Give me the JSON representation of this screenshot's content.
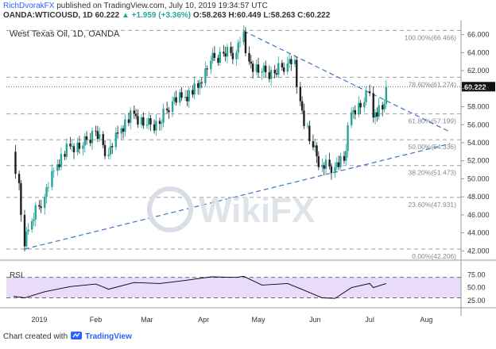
{
  "header": {
    "author": "RichDvorakFX",
    "published": "published on TradingView.com, July 10, 2019 19:34:57 UTC",
    "symbol": "OANDA:WTICOUSD, 1D",
    "price": "60.222",
    "change": "+1.959 (+3.36%)",
    "ohlc_o": "O:58.263",
    "ohlc_h": "H:60.449",
    "ohlc_l": "L:58.263",
    "ohlc_c": "C:60.222"
  },
  "footer": {
    "label": "Chart created with",
    "brand": "TradingView"
  },
  "watermark": "WikiFX",
  "chart_data": {
    "type": "candlestick",
    "title": "West Texas Oil, 1D, OANDA",
    "y_axis": {
      "ylim": [
        41.5,
        67.2
      ],
      "ticks": [
        "66.000",
        "64.000",
        "62.000",
        "60.000",
        "58.000",
        "56.000",
        "54.000",
        "52.000",
        "50.000",
        "48.000",
        "46.000",
        "44.000",
        "42.000"
      ],
      "position": "right"
    },
    "x_axis": {
      "labels": [
        "2019",
        "Feb",
        "Mar",
        "Apr",
        "May",
        "Jun",
        "Jul",
        "Aug"
      ],
      "label_dates": [
        "2019-01-01",
        "2019-02-01",
        "2019-03-01",
        "2019-04-01",
        "2019-05-01",
        "2019-06-01",
        "2019-07-01",
        "2019-08-01"
      ]
    },
    "last_price": "60.222",
    "fib_levels": [
      {
        "label": "100.00%(66.466)",
        "value": 66.466
      },
      {
        "label": "78.60%(61.274)",
        "value": 61.274
      },
      {
        "label": "61.80%(57.199)",
        "value": 57.199
      },
      {
        "label": "50.00%(54.336)",
        "value": 54.336
      },
      {
        "label": "38.20%(51.473)",
        "value": 51.473
      },
      {
        "label": "23.60%(47.931)",
        "value": 47.931
      },
      {
        "label": "0.00%(42.206)",
        "value": 42.206
      }
    ],
    "trendlines": [
      {
        "from": [
          "2018-12-24",
          42.2
        ],
        "to": [
          "2019-08-14",
          53.9
        ]
      },
      {
        "from": [
          "2019-04-23",
          66.4
        ],
        "to": [
          "2019-08-14",
          55.2
        ]
      }
    ],
    "series": [
      {
        "date": "2018-12-18",
        "value": 53.0
      },
      {
        "date": "2018-12-21",
        "value": 49.5
      },
      {
        "date": "2018-12-24",
        "value": 42.5
      },
      {
        "date": "2018-12-28",
        "value": 45.3
      },
      {
        "date": "2019-01-04",
        "value": 48.0
      },
      {
        "date": "2019-01-11",
        "value": 51.6
      },
      {
        "date": "2019-01-18",
        "value": 53.6
      },
      {
        "date": "2019-01-25",
        "value": 53.7
      },
      {
        "date": "2019-02-01",
        "value": 55.3
      },
      {
        "date": "2019-02-08",
        "value": 52.7
      },
      {
        "date": "2019-02-15",
        "value": 55.6
      },
      {
        "date": "2019-02-22",
        "value": 57.2
      },
      {
        "date": "2019-03-01",
        "value": 56.0
      },
      {
        "date": "2019-03-08",
        "value": 56.1
      },
      {
        "date": "2019-03-15",
        "value": 58.6
      },
      {
        "date": "2019-03-22",
        "value": 59.1
      },
      {
        "date": "2019-03-29",
        "value": 60.1
      },
      {
        "date": "2019-04-05",
        "value": 63.1
      },
      {
        "date": "2019-04-12",
        "value": 63.9
      },
      {
        "date": "2019-04-19",
        "value": 64.0
      },
      {
        "date": "2019-04-23",
        "value": 66.3
      },
      {
        "date": "2019-04-26",
        "value": 63.0
      },
      {
        "date": "2019-05-03",
        "value": 61.9
      },
      {
        "date": "2019-05-10",
        "value": 61.7
      },
      {
        "date": "2019-05-17",
        "value": 62.8
      },
      {
        "date": "2019-05-21",
        "value": 63.2
      },
      {
        "date": "2019-05-24",
        "value": 58.6
      },
      {
        "date": "2019-05-31",
        "value": 53.5
      },
      {
        "date": "2019-06-05",
        "value": 51.5
      },
      {
        "date": "2019-06-12",
        "value": 51.3
      },
      {
        "date": "2019-06-17",
        "value": 52.0
      },
      {
        "date": "2019-06-21",
        "value": 57.4
      },
      {
        "date": "2019-06-28",
        "value": 58.5
      },
      {
        "date": "2019-07-01",
        "value": 59.5
      },
      {
        "date": "2019-07-03",
        "value": 56.8
      },
      {
        "date": "2019-07-08",
        "value": 57.7
      },
      {
        "date": "2019-07-09",
        "value": 58.3
      },
      {
        "date": "2019-07-10",
        "value": 60.2
      }
    ],
    "rsi": {
      "label": "RSI",
      "ticks": [
        "75.00",
        "50.00",
        "25.00"
      ],
      "ylim": [
        20,
        85
      ],
      "bands": [
        70,
        30
      ],
      "values": [
        {
          "date": "2018-12-18",
          "value": 33
        },
        {
          "date": "2018-12-24",
          "value": 30
        },
        {
          "date": "2019-01-04",
          "value": 42
        },
        {
          "date": "2019-01-18",
          "value": 52
        },
        {
          "date": "2019-02-01",
          "value": 57
        },
        {
          "date": "2019-02-08",
          "value": 47
        },
        {
          "date": "2019-02-22",
          "value": 60
        },
        {
          "date": "2019-03-08",
          "value": 58
        },
        {
          "date": "2019-03-22",
          "value": 64
        },
        {
          "date": "2019-04-05",
          "value": 71
        },
        {
          "date": "2019-04-19",
          "value": 70
        },
        {
          "date": "2019-04-23",
          "value": 72
        },
        {
          "date": "2019-05-03",
          "value": 55
        },
        {
          "date": "2019-05-17",
          "value": 58
        },
        {
          "date": "2019-05-24",
          "value": 48
        },
        {
          "date": "2019-06-05",
          "value": 30
        },
        {
          "date": "2019-06-12",
          "value": 29
        },
        {
          "date": "2019-06-21",
          "value": 50
        },
        {
          "date": "2019-07-01",
          "value": 58
        },
        {
          "date": "2019-07-03",
          "value": 50
        },
        {
          "date": "2019-07-10",
          "value": 58
        }
      ]
    },
    "colors": {
      "up": "#26a69a",
      "down": "#1f1f1f",
      "trend": "#3b74c4",
      "rsi_fill": "#e8dcfa",
      "rsi_line": "#000000"
    }
  }
}
